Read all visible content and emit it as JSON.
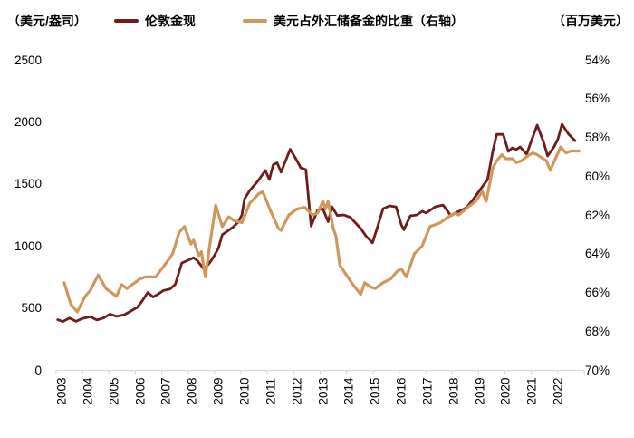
{
  "header": {
    "left_axis_unit": "（美元/盎司）",
    "right_axis_unit": "（百万美元）"
  },
  "legend": [
    {
      "label": "伦敦金现",
      "color": "#6f1d1b"
    },
    {
      "label": "美元占外汇储备金的比重（右轴）",
      "color": "#d0975c"
    }
  ],
  "colors": {
    "gold_line": "#6f1d1b",
    "usd_share_line": "#d0975c",
    "axis_line": "#d9d9d9",
    "text": "#000000",
    "background": "#ffffff"
  },
  "chart_data": {
    "type": "line",
    "title": "",
    "x_axis": {
      "tick_labels": [
        "2003",
        "2004",
        "2005",
        "2006",
        "2007",
        "2008",
        "2009",
        "2010",
        "2011",
        "2012",
        "2013",
        "2014",
        "2015",
        "2016",
        "2017",
        "2018",
        "2019",
        "2020",
        "2021",
        "2022"
      ],
      "range_years": [
        2002.8,
        2023.0
      ],
      "grid": false
    },
    "y_left": {
      "unit": "（美元/盎司）",
      "tick_labels": [
        "2500",
        "2000",
        "1500",
        "1000",
        "500",
        "0"
      ],
      "tick_values": [
        2500,
        2000,
        1500,
        1000,
        500,
        0
      ],
      "range": [
        0,
        2500
      ],
      "inverted": false
    },
    "y_right": {
      "unit": "（百万美元）",
      "tick_labels": [
        "54%",
        "56%",
        "58%",
        "60%",
        "62%",
        "64%",
        "66%",
        "68%",
        "70%"
      ],
      "tick_values": [
        54,
        56,
        58,
        60,
        62,
        64,
        66,
        68,
        70
      ],
      "range": [
        54,
        70
      ],
      "inverted": true
    },
    "series": [
      {
        "name": "伦敦金现",
        "axis": "left",
        "color": "#6f1d1b",
        "points": [
          [
            2002.85,
            405
          ],
          [
            2003.05,
            390
          ],
          [
            2003.3,
            418
          ],
          [
            2003.55,
            392
          ],
          [
            2003.8,
            415
          ],
          [
            2004.1,
            430
          ],
          [
            2004.35,
            403
          ],
          [
            2004.6,
            418
          ],
          [
            2004.85,
            450
          ],
          [
            2005.1,
            432
          ],
          [
            2005.4,
            445
          ],
          [
            2005.65,
            475
          ],
          [
            2005.9,
            505
          ],
          [
            2006.1,
            560
          ],
          [
            2006.3,
            625
          ],
          [
            2006.5,
            588
          ],
          [
            2006.7,
            612
          ],
          [
            2006.9,
            640
          ],
          [
            2007.15,
            652
          ],
          [
            2007.35,
            690
          ],
          [
            2007.6,
            862
          ],
          [
            2007.9,
            890
          ],
          [
            2008.05,
            905
          ],
          [
            2008.2,
            880
          ],
          [
            2008.45,
            812
          ],
          [
            2008.65,
            860
          ],
          [
            2008.8,
            905
          ],
          [
            2009.0,
            980
          ],
          [
            2009.15,
            1090
          ],
          [
            2009.35,
            1120
          ],
          [
            2009.55,
            1150
          ],
          [
            2009.75,
            1190
          ],
          [
            2009.9,
            1250
          ],
          [
            2010.0,
            1380
          ],
          [
            2010.2,
            1447
          ],
          [
            2010.5,
            1520
          ],
          [
            2010.8,
            1608
          ],
          [
            2010.95,
            1535
          ],
          [
            2011.1,
            1655
          ],
          [
            2011.25,
            1670
          ],
          [
            2011.4,
            1595
          ],
          [
            2011.6,
            1700
          ],
          [
            2011.75,
            1780
          ],
          [
            2012.0,
            1690
          ],
          [
            2012.15,
            1630
          ],
          [
            2012.35,
            1615
          ],
          [
            2012.55,
            1160
          ],
          [
            2012.8,
            1290
          ],
          [
            2013.0,
            1300
          ],
          [
            2013.2,
            1195
          ],
          [
            2013.35,
            1315
          ],
          [
            2013.55,
            1245
          ],
          [
            2013.8,
            1250
          ],
          [
            2014.05,
            1230
          ],
          [
            2014.45,
            1140
          ],
          [
            2014.65,
            1080
          ],
          [
            2014.9,
            1025
          ],
          [
            2015.1,
            1160
          ],
          [
            2015.3,
            1300
          ],
          [
            2015.55,
            1323
          ],
          [
            2015.8,
            1315
          ],
          [
            2016.0,
            1170
          ],
          [
            2016.1,
            1130
          ],
          [
            2016.35,
            1243
          ],
          [
            2016.6,
            1250
          ],
          [
            2016.8,
            1279
          ],
          [
            2016.95,
            1265
          ],
          [
            2017.3,
            1316
          ],
          [
            2017.6,
            1330
          ],
          [
            2017.9,
            1243
          ],
          [
            2018.1,
            1270
          ],
          [
            2018.3,
            1287
          ],
          [
            2018.5,
            1310
          ],
          [
            2018.75,
            1374
          ],
          [
            2019.05,
            1462
          ],
          [
            2019.3,
            1535
          ],
          [
            2019.5,
            1760
          ],
          [
            2019.65,
            1900
          ],
          [
            2019.9,
            1899
          ],
          [
            2020.1,
            1762
          ],
          [
            2020.25,
            1791
          ],
          [
            2020.4,
            1776
          ],
          [
            2020.55,
            1798
          ],
          [
            2020.8,
            1740
          ],
          [
            2021.0,
            1860
          ],
          [
            2021.2,
            1974
          ],
          [
            2021.45,
            1835
          ],
          [
            2021.6,
            1725
          ],
          [
            2021.85,
            1800
          ],
          [
            2022.0,
            1864
          ],
          [
            2022.15,
            1981
          ],
          [
            2022.4,
            1901
          ],
          [
            2022.65,
            1849
          ]
        ]
      },
      {
        "name": "美元占外汇储备金的比重（右轴）",
        "axis": "right",
        "color": "#d0975c",
        "points": [
          [
            2003.1,
            65.5
          ],
          [
            2003.35,
            66.6
          ],
          [
            2003.6,
            67.0
          ],
          [
            2003.9,
            66.2
          ],
          [
            2004.1,
            65.9
          ],
          [
            2004.4,
            65.1
          ],
          [
            2004.7,
            65.8
          ],
          [
            2005.0,
            66.1
          ],
          [
            2005.1,
            66.2
          ],
          [
            2005.3,
            65.6
          ],
          [
            2005.5,
            65.8
          ],
          [
            2005.8,
            65.5
          ],
          [
            2006.0,
            65.3
          ],
          [
            2006.2,
            65.2
          ],
          [
            2006.6,
            65.2
          ],
          [
            2007.1,
            64.3
          ],
          [
            2007.25,
            64.0
          ],
          [
            2007.5,
            62.9
          ],
          [
            2007.7,
            62.6
          ],
          [
            2007.95,
            63.5
          ],
          [
            2008.05,
            63.3
          ],
          [
            2008.25,
            64.1
          ],
          [
            2008.35,
            63.9
          ],
          [
            2008.5,
            65.2
          ],
          [
            2008.7,
            63.3
          ],
          [
            2008.9,
            61.5
          ],
          [
            2009.15,
            62.6
          ],
          [
            2009.4,
            62.1
          ],
          [
            2009.6,
            62.3
          ],
          [
            2009.9,
            62.4
          ],
          [
            2010.2,
            61.4
          ],
          [
            2010.55,
            60.9
          ],
          [
            2010.7,
            60.8
          ],
          [
            2011.0,
            61.8
          ],
          [
            2011.3,
            62.7
          ],
          [
            2011.4,
            62.8
          ],
          [
            2011.7,
            62.0
          ],
          [
            2012.0,
            61.7
          ],
          [
            2012.3,
            61.6
          ],
          [
            2012.45,
            61.8
          ],
          [
            2012.6,
            62.0
          ],
          [
            2012.8,
            61.9
          ],
          [
            2013.0,
            61.3
          ],
          [
            2013.1,
            61.7
          ],
          [
            2013.2,
            61.3
          ],
          [
            2013.4,
            62.7
          ],
          [
            2013.5,
            63.1
          ],
          [
            2013.65,
            64.6
          ],
          [
            2013.9,
            65.1
          ],
          [
            2014.15,
            65.6
          ],
          [
            2014.45,
            66.1
          ],
          [
            2014.6,
            65.5
          ],
          [
            2014.8,
            65.7
          ],
          [
            2015.0,
            65.8
          ],
          [
            2015.3,
            65.5
          ],
          [
            2015.6,
            65.3
          ],
          [
            2015.85,
            64.9
          ],
          [
            2016.0,
            64.8
          ],
          [
            2016.2,
            65.2
          ],
          [
            2016.5,
            64.0
          ],
          [
            2016.8,
            63.6
          ],
          [
            2017.1,
            62.6
          ],
          [
            2017.3,
            62.5
          ],
          [
            2017.5,
            62.4
          ],
          [
            2017.8,
            62.1
          ],
          [
            2018.05,
            61.9
          ],
          [
            2018.2,
            62.0
          ],
          [
            2018.55,
            61.6
          ],
          [
            2018.85,
            61.3
          ],
          [
            2019.1,
            60.8
          ],
          [
            2019.25,
            61.3
          ],
          [
            2019.5,
            59.6
          ],
          [
            2019.65,
            59.2
          ],
          [
            2019.85,
            58.9
          ],
          [
            2020.0,
            59.1
          ],
          [
            2020.25,
            59.1
          ],
          [
            2020.4,
            59.3
          ],
          [
            2020.6,
            59.2
          ],
          [
            2020.9,
            58.9
          ],
          [
            2021.05,
            58.8
          ],
          [
            2021.2,
            58.9
          ],
          [
            2021.55,
            59.2
          ],
          [
            2021.7,
            59.7
          ],
          [
            2022.0,
            58.8
          ],
          [
            2022.1,
            58.5
          ],
          [
            2022.3,
            58.8
          ],
          [
            2022.5,
            58.7
          ],
          [
            2022.8,
            58.7
          ]
        ]
      }
    ],
    "legend_position": "top"
  }
}
